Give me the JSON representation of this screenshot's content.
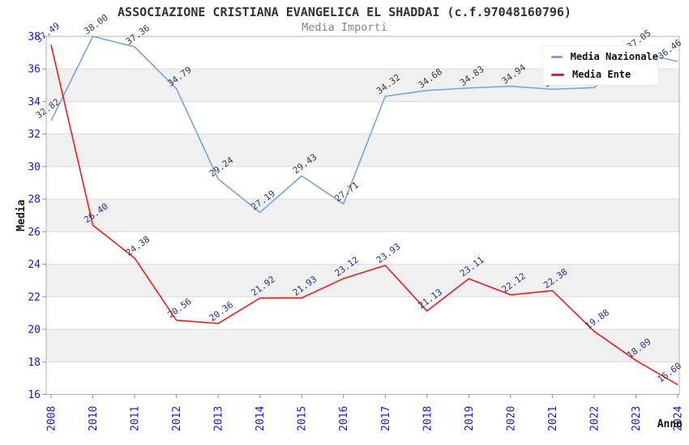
{
  "title": "ASSOCIAZIONE CRISTIANA EVANGELICA EL SHADDAI (c.f.97048160796)",
  "subtitle": "Media Importi",
  "legend": {
    "items": [
      {
        "label": "Media Nazionale",
        "color": "#76a5da"
      },
      {
        "label": "Media Ente",
        "color": "#ee1c1c"
      }
    ]
  },
  "axes": {
    "x_label": "Anno",
    "y_label": "Media",
    "y_ticks": [
      38,
      36,
      34,
      32,
      30,
      28,
      26,
      24,
      22,
      20,
      18,
      16
    ],
    "tick_label_color": "#1717d6"
  },
  "colors": {
    "band_fill": "#f0f0f0",
    "gridline": "#dcdcdc",
    "plot_border": "#b0b0b0",
    "nazionale_line": "#76a5da",
    "nazionale_point_labels": "#3b3b3b",
    "ente_line": "#ee1c1c",
    "ente_point_labels": "#2d2d8e"
  },
  "chart_data": {
    "type": "line",
    "title": "ASSOCIAZIONE CRISTIANA EVANGELICA EL SHADDAI (c.f.97048160796)",
    "subtitle": "Media Importi",
    "xlabel": "Anno",
    "ylabel": "Media",
    "ylim": [
      16,
      38
    ],
    "y_tick_step": 2,
    "grid": "horizontal-with-alternating-bands",
    "legend_position": "top-right-inside",
    "categories": [
      "2008",
      "2010",
      "2011",
      "2012",
      "2013",
      "2014",
      "2015",
      "2016",
      "2017",
      "2018",
      "2019",
      "2020",
      "2021",
      "2022",
      "2023",
      "2024"
    ],
    "series": [
      {
        "name": "Media Nazionale",
        "color": "#76a5da",
        "label_color": "#3b3b3b",
        "values": [
          32.82,
          38.0,
          37.36,
          34.79,
          29.24,
          27.19,
          29.43,
          27.71,
          34.32,
          34.68,
          34.83,
          34.94,
          34.75,
          34.85,
          37.05,
          36.46
        ],
        "note": "2021 and 2022 labels are hidden behind the legend box; values estimated from line position"
      },
      {
        "name": "Media Ente",
        "color": "#ee1c1c",
        "label_color": "#2d2d8e",
        "values": [
          37.49,
          26.4,
          24.38,
          20.56,
          20.36,
          21.92,
          21.93,
          23.12,
          23.93,
          21.13,
          23.11,
          22.12,
          22.38,
          19.88,
          18.09,
          16.6
        ]
      }
    ]
  }
}
